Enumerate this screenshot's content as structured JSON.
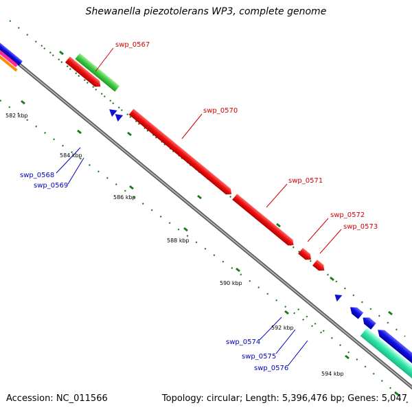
{
  "title": "Shewanella piezotolerans WP3, complete genome",
  "footer": {
    "accession": "Accession: NC_011566",
    "summary": "Topology: circular; Length: 5,396,476 bp; Genes: 5,047"
  },
  "ticks": [
    {
      "label": "582 kbp",
      "kbp": 582
    },
    {
      "label": "584 kbp",
      "kbp": 584
    },
    {
      "label": "586 kbp",
      "kbp": 586
    },
    {
      "label": "588 kbp",
      "kbp": 588
    },
    {
      "label": "590 kbp",
      "kbp": 590
    },
    {
      "label": "592 kbp",
      "kbp": 592
    },
    {
      "label": "594 kbp",
      "kbp": 594
    }
  ],
  "genes_labeled": [
    {
      "name": "swp_0567",
      "strand": "+",
      "track": "cds-forward",
      "color": "#e01010"
    },
    {
      "name": "swp_0568",
      "strand": "-",
      "track": "cds-reverse",
      "color": "#1010d8"
    },
    {
      "name": "swp_0569",
      "strand": "-",
      "track": "cds-reverse",
      "color": "#1010d8"
    },
    {
      "name": "swp_0570",
      "strand": "+",
      "track": "cds-forward",
      "color": "#e01010"
    },
    {
      "name": "swp_0571",
      "strand": "+",
      "track": "cds-forward",
      "color": "#e01010"
    },
    {
      "name": "swp_0572",
      "strand": "+",
      "track": "cds-forward",
      "color": "#e01010"
    },
    {
      "name": "swp_0573",
      "strand": "+",
      "track": "cds-forward",
      "color": "#e01010"
    },
    {
      "name": "swp_0574",
      "strand": "-",
      "track": "cds-reverse",
      "color": "#1010d8"
    },
    {
      "name": "swp_0575",
      "strand": "-",
      "track": "cds-reverse",
      "color": "#1010d8"
    },
    {
      "name": "swp_0576",
      "strand": "-",
      "track": "cds-reverse",
      "color": "#1010d8"
    }
  ],
  "colors": {
    "forward_cds": "#e01010",
    "reverse_cds": "#1010d8",
    "feature_green": "#44cc44",
    "feature_teal": "#33e8a8",
    "backbone": "#888888",
    "tick": "#1a7a1a",
    "label_forward": "#d00000",
    "label_reverse": "#0000c0"
  }
}
